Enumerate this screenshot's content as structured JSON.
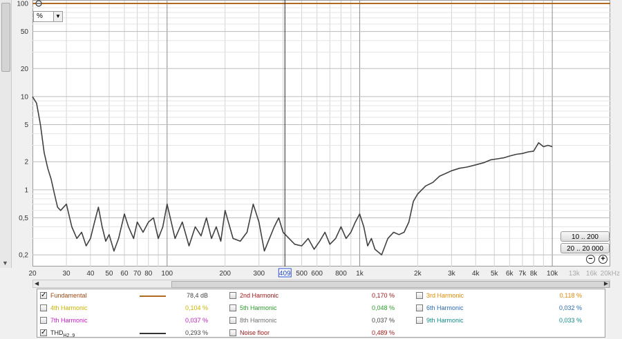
{
  "unit_selector": {
    "value": "%",
    "arrow": "▼"
  },
  "range_buttons": {
    "low": "10 .. 200",
    "high": "20 .. 20 000"
  },
  "zoom": {
    "out": "−",
    "in": "+"
  },
  "cursor_label": "409",
  "legend": [
    {
      "checked": true,
      "name": "Fundamental",
      "value": "78,4 dB",
      "color": "#b06a20",
      "line": true
    },
    {
      "checked": false,
      "name": "2nd Harmonic",
      "value": "0,170 %",
      "color": "#a01818"
    },
    {
      "checked": false,
      "name": "3rd Harmonic",
      "value": "0,118 %",
      "color": "#e08a00"
    },
    {
      "checked": false,
      "name": "4th Harmonic",
      "value": "0,104 %",
      "color": "#c8b400"
    },
    {
      "checked": false,
      "name": "5th Harmonic",
      "value": "0,048 %",
      "color": "#2a9a2a"
    },
    {
      "checked": false,
      "name": "6th Harmonic",
      "value": "0,032 %",
      "color": "#2a6ab0"
    },
    {
      "checked": false,
      "name": "7th Harmonic",
      "value": "0,037 %",
      "color": "#c020c0"
    },
    {
      "checked": false,
      "name": "8th Harmonic",
      "value": "0,037 %",
      "color": "#707070"
    },
    {
      "checked": false,
      "name": "9th Harmonic",
      "value": "0,033 %",
      "color": "#108a8a"
    },
    {
      "checked": true,
      "name": "THD",
      "sub": "H2..9",
      "value": "0,293 %",
      "color": "#333333",
      "line": true
    },
    {
      "checked": false,
      "name": "Noise floor",
      "value": "0,489 %",
      "color": "#a01818"
    }
  ],
  "chart_data": {
    "type": "line",
    "x_scale": "log",
    "y_scale": "log",
    "xlim": [
      20,
      20000
    ],
    "ylim": [
      0.15,
      100
    ],
    "y_ticks": [
      "100",
      "50",
      "20",
      "10",
      "5",
      "2",
      "1",
      "0,5",
      "0,2"
    ],
    "y_tick_values": [
      100,
      50,
      20,
      10,
      5,
      2,
      1,
      0.5,
      0.2
    ],
    "x_ticks": [
      {
        "v": 20,
        "t": "20"
      },
      {
        "v": 30,
        "t": "30"
      },
      {
        "v": 40,
        "t": "40"
      },
      {
        "v": 50,
        "t": "50"
      },
      {
        "v": 60,
        "t": "60"
      },
      {
        "v": 70,
        "t": "70"
      },
      {
        "v": 80,
        "t": "80"
      },
      {
        "v": 100,
        "t": "100"
      },
      {
        "v": 200,
        "t": "200"
      },
      {
        "v": 300,
        "t": "300"
      },
      {
        "v": 500,
        "t": "500"
      },
      {
        "v": 600,
        "t": "600"
      },
      {
        "v": 800,
        "t": "800"
      },
      {
        "v": 1000,
        "t": "1k"
      },
      {
        "v": 2000,
        "t": "2k"
      },
      {
        "v": 3000,
        "t": "3k"
      },
      {
        "v": 4000,
        "t": "4k"
      },
      {
        "v": 5000,
        "t": "5k"
      },
      {
        "v": 6000,
        "t": "6k"
      },
      {
        "v": 7000,
        "t": "7k"
      },
      {
        "v": 8000,
        "t": "8k"
      },
      {
        "v": 10000,
        "t": "10k"
      },
      {
        "v": 13000,
        "t": "13k",
        "dim": true
      },
      {
        "v": 16000,
        "t": "16k",
        "dim": true
      },
      {
        "v": 20000,
        "t": "20kHz",
        "dim": true
      }
    ],
    "cursor_x": 409,
    "series": [
      {
        "name": "Fundamental",
        "color": "#b06a20",
        "x": [
          20,
          20000
        ],
        "y": [
          100,
          100
        ]
      },
      {
        "name": "THD",
        "color": "#404040",
        "x": [
          20,
          21,
          22,
          23,
          24,
          25,
          26,
          27,
          28,
          30,
          32,
          34,
          36,
          38,
          40,
          42,
          44,
          46,
          48,
          50,
          53,
          56,
          60,
          63,
          67,
          70,
          75,
          80,
          85,
          90,
          95,
          100,
          110,
          120,
          130,
          140,
          150,
          160,
          170,
          180,
          190,
          200,
          220,
          240,
          260,
          280,
          300,
          320,
          340,
          360,
          380,
          400,
          430,
          460,
          500,
          540,
          580,
          620,
          660,
          700,
          750,
          800,
          850,
          900,
          950,
          1000,
          1050,
          1100,
          1150,
          1200,
          1300,
          1400,
          1500,
          1600,
          1700,
          1800,
          1900,
          2000,
          2200,
          2400,
          2600,
          2800,
          3000,
          3300,
          3600,
          4000,
          4400,
          4800,
          5200,
          5600,
          6000,
          6500,
          7000,
          7500,
          8000,
          8500,
          9000,
          9500,
          10000
        ],
        "y": [
          10,
          8.5,
          5,
          2.5,
          1.7,
          1.3,
          0.9,
          0.65,
          0.6,
          0.7,
          0.4,
          0.3,
          0.35,
          0.25,
          0.3,
          0.45,
          0.65,
          0.4,
          0.28,
          0.33,
          0.22,
          0.3,
          0.55,
          0.4,
          0.3,
          0.45,
          0.35,
          0.45,
          0.5,
          0.3,
          0.4,
          0.7,
          0.3,
          0.45,
          0.25,
          0.4,
          0.32,
          0.5,
          0.3,
          0.4,
          0.28,
          0.6,
          0.3,
          0.28,
          0.35,
          0.7,
          0.45,
          0.22,
          0.3,
          0.4,
          0.5,
          0.35,
          0.3,
          0.26,
          0.25,
          0.3,
          0.23,
          0.28,
          0.35,
          0.26,
          0.3,
          0.4,
          0.3,
          0.35,
          0.45,
          0.55,
          0.4,
          0.25,
          0.3,
          0.23,
          0.2,
          0.3,
          0.35,
          0.33,
          0.35,
          0.45,
          0.75,
          0.9,
          1.1,
          1.2,
          1.4,
          1.5,
          1.6,
          1.7,
          1.75,
          1.85,
          1.95,
          2.1,
          2.15,
          2.2,
          2.3,
          2.4,
          2.45,
          2.55,
          2.6,
          3.2,
          2.9,
          3.0,
          2.9
        ]
      }
    ]
  }
}
